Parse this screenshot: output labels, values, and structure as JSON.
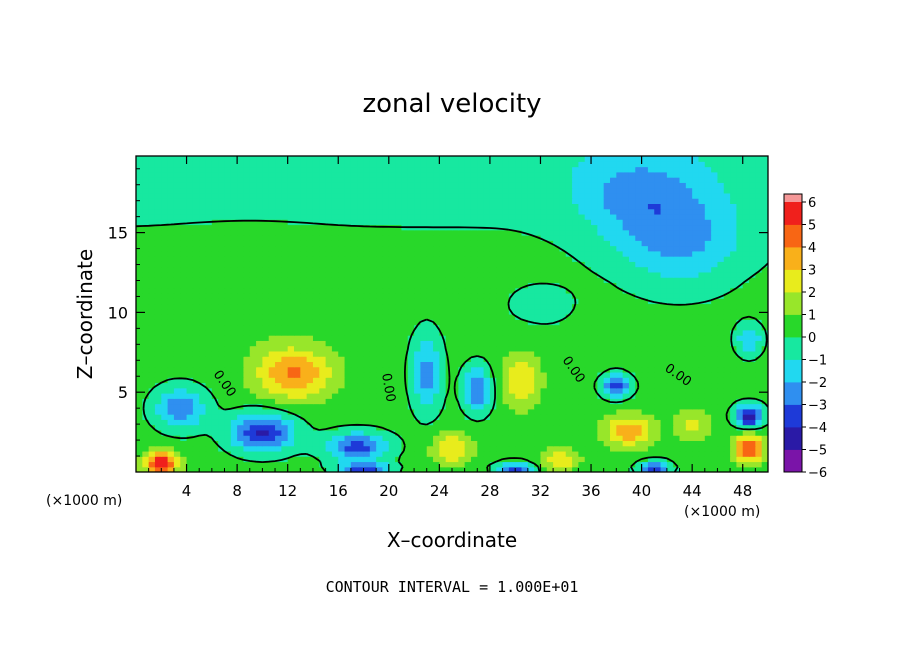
{
  "chart_data": {
    "type": "heatmap",
    "title": "zonal velocity",
    "xlabel": "X–coordinate",
    "ylabel": "Z–coordinate",
    "x_unit_left": "(×1000 m)",
    "x_unit_right": "(×1000 m)",
    "xlim": [
      0,
      50
    ],
    "ylim": [
      0,
      19.8
    ],
    "x_ticks": [
      {
        "value": 4,
        "label": "4"
      },
      {
        "value": 8,
        "label": "8"
      },
      {
        "value": 12,
        "label": "12"
      },
      {
        "value": 16,
        "label": "16"
      },
      {
        "value": 20,
        "label": "20"
      },
      {
        "value": 24,
        "label": "24"
      },
      {
        "value": 28,
        "label": "28"
      },
      {
        "value": 32,
        "label": "32"
      },
      {
        "value": 36,
        "label": "36"
      },
      {
        "value": 40,
        "label": "40"
      },
      {
        "value": 44,
        "label": "44"
      },
      {
        "value": 48,
        "label": "48"
      }
    ],
    "y_ticks": [
      {
        "value": 5,
        "label": "5"
      },
      {
        "value": 10,
        "label": "10"
      },
      {
        "value": 15,
        "label": "15"
      }
    ],
    "colorbar": {
      "min": -6,
      "max": 6,
      "labels": [
        {
          "value": 6,
          "label": "6"
        },
        {
          "value": 5,
          "label": "5"
        },
        {
          "value": 4,
          "label": "4"
        },
        {
          "value": 3,
          "label": "3"
        },
        {
          "value": 2,
          "label": "2"
        },
        {
          "value": 1,
          "label": "1"
        },
        {
          "value": 0,
          "label": "0"
        },
        {
          "value": -1,
          "label": "−1"
        },
        {
          "value": -2,
          "label": "−2"
        },
        {
          "value": -3,
          "label": "−3"
        },
        {
          "value": -4,
          "label": "−4"
        },
        {
          "value": -5,
          "label": "−5"
        },
        {
          "value": -6,
          "label": "−6"
        }
      ],
      "colors": [
        "#7a14a8",
        "#2a1aa6",
        "#1e3ad8",
        "#2f8ff0",
        "#21d8f0",
        "#17e8a0",
        "#28d82a",
        "#98e62a",
        "#e8ec1c",
        "#f9b01a",
        "#f86614",
        "#f0201c",
        "#f59898"
      ]
    },
    "field_background": 0.4,
    "features": [
      {
        "x": 12.5,
        "z": 6.2,
        "amp": 3.8,
        "sx": 3.0,
        "sz": 1.6
      },
      {
        "x": 30.5,
        "z": 5.8,
        "amp": 2.5,
        "sx": 1.5,
        "sz": 1.7
      },
      {
        "x": 39.0,
        "z": 2.6,
        "amp": 3.4,
        "sx": 1.9,
        "sz": 1.0
      },
      {
        "x": 48.5,
        "z": 1.5,
        "amp": 4.5,
        "sx": 1.2,
        "sz": 0.9
      },
      {
        "x": 2.0,
        "z": 0.6,
        "amp": 5.5,
        "sx": 1.3,
        "sz": 0.7
      },
      {
        "x": 25.0,
        "z": 1.5,
        "amp": 2.6,
        "sx": 1.6,
        "sz": 1.0
      },
      {
        "x": 33.5,
        "z": 0.8,
        "amp": 2.5,
        "sx": 1.5,
        "sz": 0.7
      },
      {
        "x": 44.0,
        "z": 3.0,
        "amp": 2.0,
        "sx": 1.3,
        "sz": 1.0
      },
      {
        "x": 9.0,
        "z": 11.0,
        "amp": 0.6,
        "sx": 6.0,
        "sz": 3.0
      },
      {
        "x": 10.0,
        "z": 2.5,
        "amp": -4.5,
        "sx": 2.5,
        "sz": 1.2
      },
      {
        "x": 17.5,
        "z": 1.6,
        "amp": -3.8,
        "sx": 2.5,
        "sz": 0.9
      },
      {
        "x": 3.5,
        "z": 4.0,
        "amp": -3.2,
        "sx": 2.0,
        "sz": 1.3
      },
      {
        "x": 23.0,
        "z": 6.2,
        "amp": -2.8,
        "sx": 1.2,
        "sz": 2.4
      },
      {
        "x": 27.0,
        "z": 5.2,
        "amp": -3.5,
        "sx": 1.1,
        "sz": 1.4
      },
      {
        "x": 38.0,
        "z": 5.4,
        "amp": -4.2,
        "sx": 1.1,
        "sz": 0.7
      },
      {
        "x": 48.5,
        "z": 3.5,
        "amp": -5.0,
        "sx": 1.1,
        "sz": 0.7
      },
      {
        "x": 48.5,
        "z": 8.3,
        "amp": -2.5,
        "sx": 1.0,
        "sz": 1.0
      },
      {
        "x": 43.0,
        "z": 14.5,
        "amp": -2.4,
        "sx": 5.0,
        "sz": 3.0
      },
      {
        "x": 39.5,
        "z": 17.5,
        "amp": -2.0,
        "sx": 5.0,
        "sz": 2.5
      },
      {
        "x": 18.0,
        "z": 0.2,
        "amp": -4.0,
        "sx": 2.0,
        "sz": 0.4
      },
      {
        "x": 30.0,
        "z": 0.2,
        "amp": -4.0,
        "sx": 1.5,
        "sz": 0.4
      },
      {
        "x": 41.0,
        "z": 0.3,
        "amp": -4.0,
        "sx": 1.2,
        "sz": 0.4
      },
      {
        "x": 32.0,
        "z": 10.5,
        "amp": -0.6,
        "sx": 4.0,
        "sz": 2.0
      }
    ],
    "contour_label": "0.00",
    "footer": "CONTOUR INTERVAL = 1.000E+01"
  }
}
